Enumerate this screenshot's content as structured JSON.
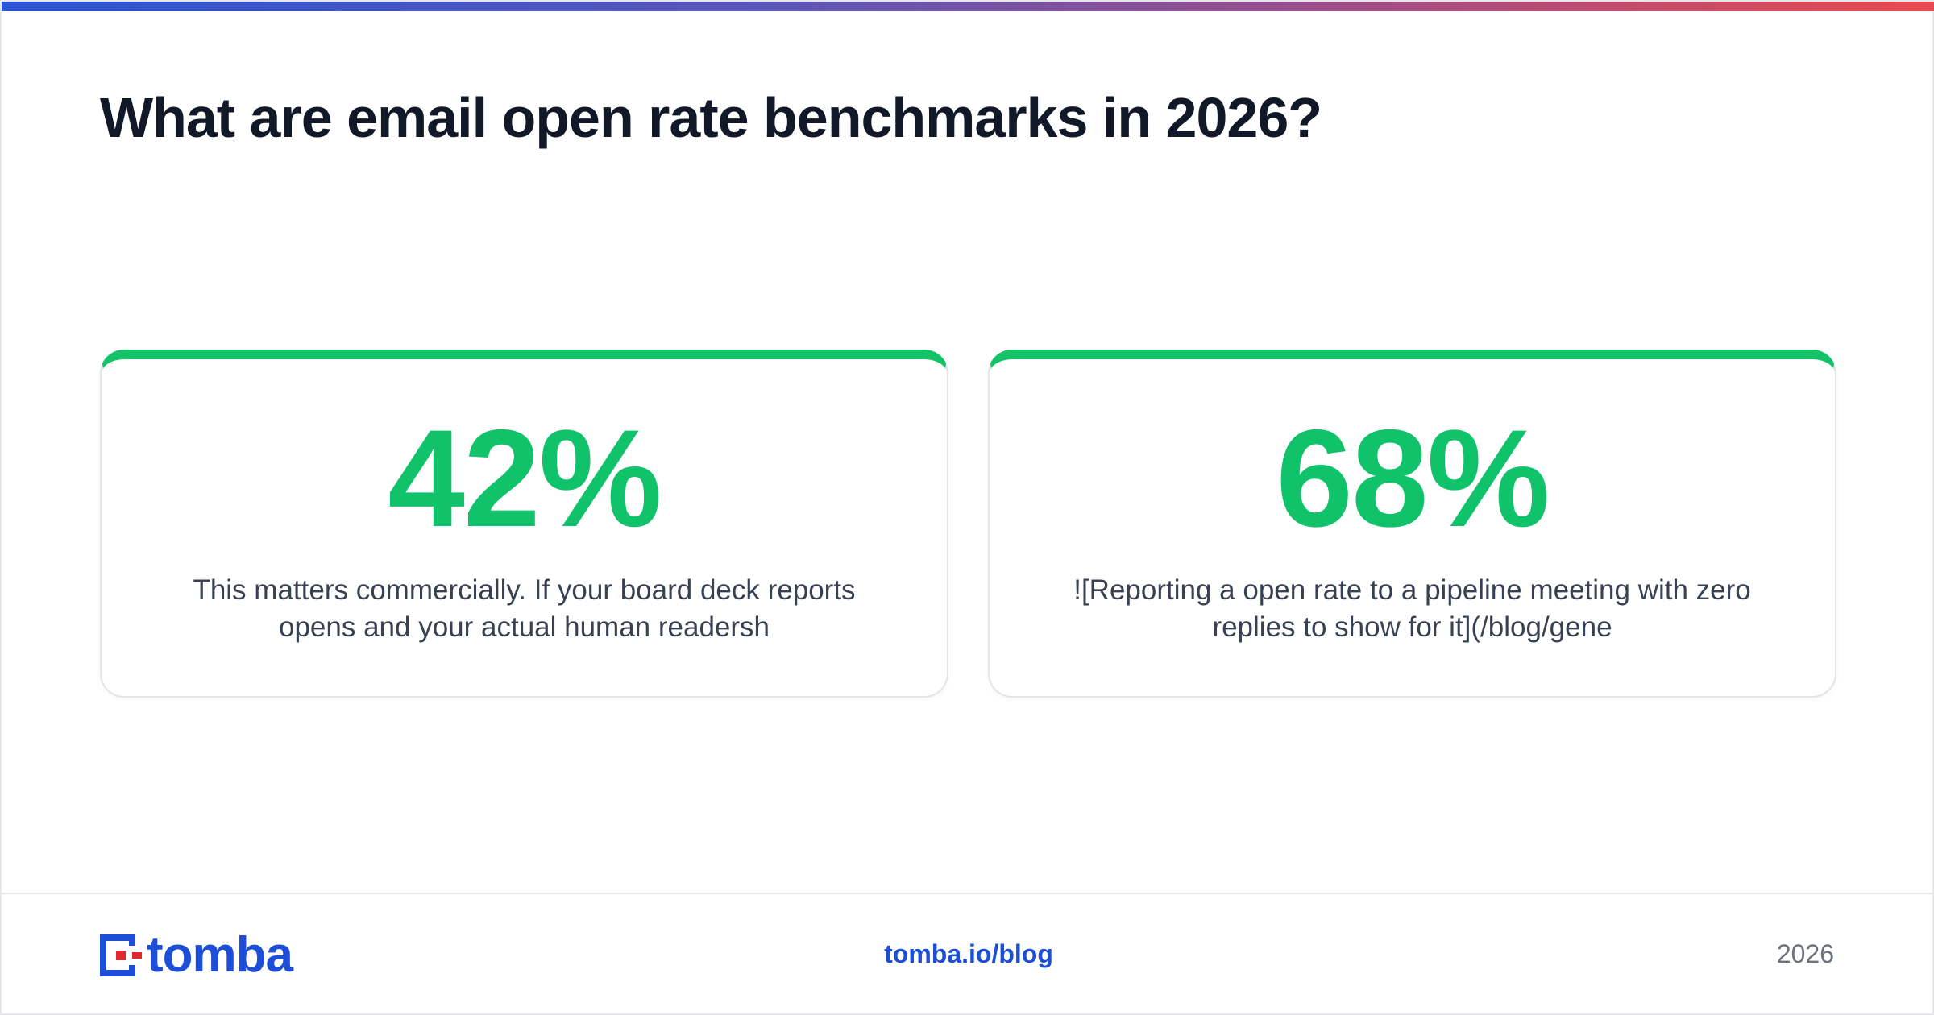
{
  "title": "What are email open rate benchmarks in 2026?",
  "stats": [
    {
      "value": "42%",
      "description": "This matters commercially. If your board deck reports opens and your actual human readersh"
    },
    {
      "value": "68%",
      "description": "![Reporting a open rate to a pipeline meeting with zero replies to show for it](/blog/gene"
    }
  ],
  "footer": {
    "logo_text": "tomba",
    "link": "tomba.io/blog",
    "year": "2026"
  },
  "colors": {
    "accent": "#10c26a",
    "brand": "#1d4ed8",
    "logo_red": "#e0282f",
    "title": "#111827"
  }
}
